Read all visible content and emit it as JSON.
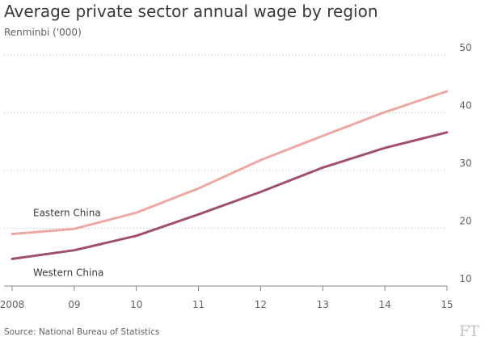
{
  "chart_data": {
    "type": "line",
    "title": "Average private sector annual wage by region",
    "subtitle": "Renminbi ('000)",
    "source": "Source: National Bureau of Statistics",
    "logo": "FT",
    "x": [
      2008,
      2009,
      2010,
      2011,
      2012,
      2013,
      2014,
      2015
    ],
    "x_tick_labels": [
      "2008",
      "09",
      "10",
      "11",
      "12",
      "13",
      "14",
      "15"
    ],
    "ylim": [
      10,
      50
    ],
    "y_ticks": [
      10,
      20,
      30,
      40,
      50
    ],
    "y_tick_labels": [
      "10",
      "20",
      "30",
      "40",
      "50"
    ],
    "grid": "horizontal-dotted",
    "series": [
      {
        "name": "Eastern China",
        "color": "#eca9a4",
        "values": [
          19.0,
          19.9,
          22.7,
          26.9,
          31.8,
          36.0,
          40.1,
          43.7
        ]
      },
      {
        "name": "Western China",
        "color": "#a0506e",
        "values": [
          14.7,
          16.2,
          18.7,
          22.4,
          26.3,
          30.5,
          33.9,
          36.6
        ]
      }
    ]
  }
}
